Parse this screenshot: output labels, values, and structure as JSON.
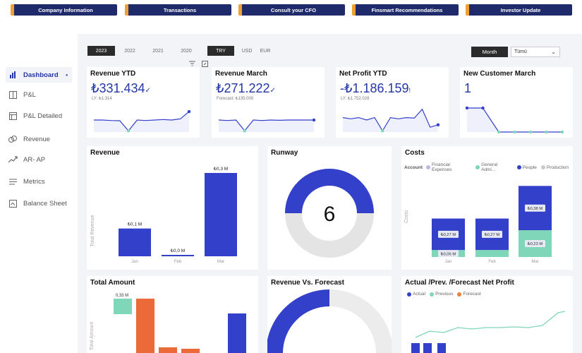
{
  "nav": {
    "buttons": [
      "Company Information",
      "Transactions",
      "Consult your CFO",
      "Finsmart Recommendations",
      "Investor Update"
    ]
  },
  "sidebar": {
    "items": [
      {
        "label": "Dashboard",
        "icon": "bar-chart-icon",
        "active": true
      },
      {
        "label": "P&L",
        "icon": "book-icon"
      },
      {
        "label": "P&L Detailed",
        "icon": "table-icon"
      },
      {
        "label": "Revenue",
        "icon": "coins-icon"
      },
      {
        "label": "AR- AP",
        "icon": "trend-up-icon"
      },
      {
        "label": "Metrics",
        "icon": "list-icon"
      },
      {
        "label": "Balance Sheet",
        "icon": "sheet-icon"
      }
    ],
    "active_marker": "•"
  },
  "filters": {
    "years": [
      "2023",
      "2022",
      "2021",
      "2020"
    ],
    "selected_year": "2023",
    "currencies": [
      "TRY",
      "USD",
      "EUR"
    ],
    "selected_currency": "TRY",
    "period_button": "Month",
    "dropdown_value": "Tümü"
  },
  "kpis": [
    {
      "title": "Revenue YTD",
      "value": "₺331.434",
      "mark": "✓",
      "sub": "LY: ₺1.314",
      "sparkline": [
        0.5,
        0.5,
        0.48,
        0.47,
        0.05,
        0.5,
        0.48,
        0.5,
        0.52,
        0.5,
        0.55,
        0.85
      ]
    },
    {
      "title": "Revenue March",
      "value": "₺271.222",
      "mark": "✓",
      "sub": "Forecast: ₺135.000",
      "sparkline": [
        0.5,
        0.48,
        0.5,
        0.05,
        0.5,
        0.48,
        0.5,
        0.49,
        0.5,
        0.5,
        0.5,
        0.5
      ]
    },
    {
      "title": "Net Profit YTD",
      "value": "-₺1.186.159",
      "mark": "!",
      "sub": "LY: ₺1.752.028",
      "sparkline": [
        0.6,
        0.55,
        0.6,
        0.5,
        0.6,
        0.05,
        0.6,
        0.55,
        0.6,
        0.58,
        0.95,
        0.2,
        0.3
      ]
    },
    {
      "title": "New Customer March",
      "value": "1",
      "mark": "",
      "sub": "",
      "sparkline": [
        1,
        1,
        0,
        0,
        0,
        0,
        0
      ]
    }
  ],
  "revenue": {
    "title": "Revenue",
    "ylabel": "Total Revenue"
  },
  "runway": {
    "title": "Runway",
    "value": "6",
    "fraction": 0.5,
    "color": "#3340c9"
  },
  "costs": {
    "title": "Costs",
    "legend_title": "Account",
    "ylabel": "Costs"
  },
  "total_amount": {
    "title": "Total Amount",
    "ylabel": "Total Amount",
    "labels": [
      "0,33 M"
    ]
  },
  "revenue_forecast": {
    "title": "Revenue Vs. Forecast"
  },
  "net_profit": {
    "title": "Actual /Prev. /Forecast Net Profit",
    "legend": [
      {
        "name": "Actual",
        "color": "#3340c9"
      },
      {
        "name": "Previous",
        "color": "#7fd6b8"
      },
      {
        "name": "Forecast",
        "color": "#f08030"
      }
    ]
  },
  "chart_data": [
    {
      "type": "bar",
      "title": "Revenue",
      "ylabel": "Total Revenue",
      "categories": [
        "Jan",
        "Feb",
        "Mar"
      ],
      "values": [
        0.1,
        0.0,
        0.3
      ],
      "data_labels": [
        "₺0,1 M",
        "₺0,0 M",
        "₺0,3 M"
      ],
      "color": "#3340c9"
    },
    {
      "type": "bar",
      "title": "Costs",
      "ylabel": "Costs",
      "legend_title": "Account",
      "categories": [
        "Jan",
        "Feb",
        "Mar"
      ],
      "legend": [
        {
          "name": "Financial Expenses",
          "color": "#b8b8e8"
        },
        {
          "name": "General Admi...",
          "color": "#7fd6b8"
        },
        {
          "name": "People",
          "color": "#3340c9"
        },
        {
          "name": "Production",
          "color": "#c9c9c9"
        }
      ],
      "series": [
        {
          "name": "General Admi...",
          "values": [
            0.06,
            0.06,
            0.23
          ],
          "labels": [
            "₺0,06 M",
            "",
            "₺0,23 M"
          ],
          "color": "#7fd6b8"
        },
        {
          "name": "People",
          "values": [
            0.27,
            0.27,
            0.38
          ],
          "labels": [
            "₺0,27 M",
            "₺0,27 M",
            "₺0,38 M"
          ],
          "color": "#3340c9"
        }
      ]
    }
  ]
}
